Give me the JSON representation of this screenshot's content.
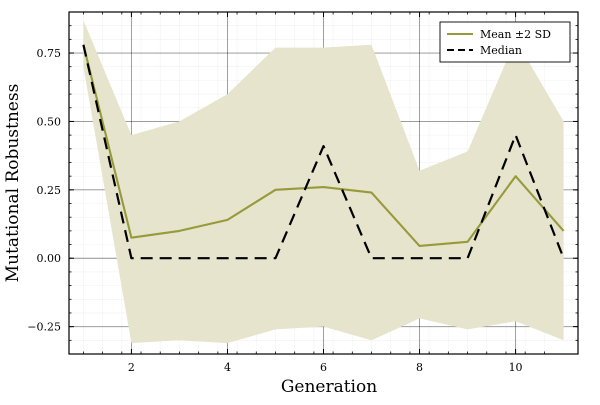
{
  "chart_data": {
    "type": "line",
    "title": "",
    "xlabel": "Generation",
    "ylabel": "Mutational Robustness",
    "xlim": [
      0.7,
      11.3
    ],
    "ylim": [
      -0.35,
      0.9
    ],
    "x_ticks": [
      2,
      4,
      6,
      8,
      10
    ],
    "x_tick_labels": [
      "2",
      "4",
      "6",
      "8",
      "10"
    ],
    "y_ticks": [
      -0.25,
      0.0,
      0.25,
      0.5,
      0.75
    ],
    "y_tick_labels": [
      "−0.25",
      "0.00",
      "0.25",
      "0.50",
      "0.75"
    ],
    "grid": true,
    "minor_grid": true,
    "legend_position": "top-right",
    "x": [
      1,
      2,
      3,
      4,
      5,
      6,
      7,
      8,
      9,
      10,
      11
    ],
    "band": {
      "upper": [
        0.87,
        0.45,
        0.5,
        0.6,
        0.77,
        0.77,
        0.78,
        0.32,
        0.39,
        0.8,
        0.5
      ],
      "lower": [
        0.7,
        -0.31,
        -0.3,
        -0.31,
        -0.26,
        -0.25,
        -0.3,
        -0.22,
        -0.26,
        -0.23,
        -0.3
      ],
      "color": "#e6e4cc"
    },
    "series": [
      {
        "name": "Mean ±2 SD",
        "style": "solid",
        "color": "#969a3a",
        "values": [
          0.78,
          0.075,
          0.1,
          0.14,
          0.25,
          0.26,
          0.24,
          0.045,
          0.06,
          0.3,
          0.1
        ]
      },
      {
        "name": "Median",
        "style": "dashed",
        "color": "#000000",
        "values": [
          0.78,
          0.0,
          0.0,
          0.0,
          0.0,
          0.41,
          0.0,
          0.0,
          0.0,
          0.45,
          0.0
        ]
      }
    ]
  }
}
